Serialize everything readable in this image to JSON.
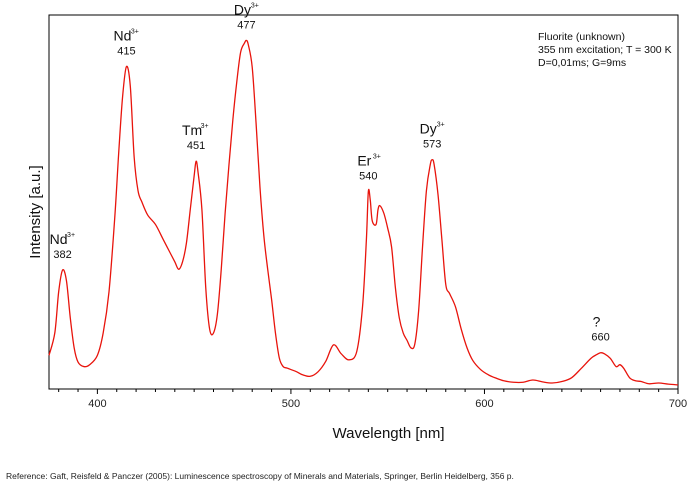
{
  "chart_data": {
    "type": "line",
    "xlabel": "Wavelength [nm]",
    "ylabel": "Intensity [a.u.]",
    "xlim": [
      375,
      700
    ],
    "ylim": [
      0,
      1
    ],
    "x_ticks": [
      400,
      500,
      600,
      700
    ],
    "y_ticks_labeled": false,
    "grid": false,
    "legend": "none",
    "line_color": "#e8140c",
    "info_lines": [
      "Fluorite (unknown)",
      "355 nm excitation; T = 300 K",
      "D=0,01ms; G=9ms"
    ],
    "peak_labels": [
      {
        "ion": "Nd",
        "charge": "3+",
        "value": "382",
        "x": 382,
        "y": 0.318
      },
      {
        "ion": "Nd",
        "charge": "3+",
        "value": "415",
        "x": 415,
        "y": 0.862
      },
      {
        "ion": "Tm",
        "charge": "3+",
        "value": "451",
        "x": 451,
        "y": 0.609
      },
      {
        "ion": "Dy",
        "charge": "3+",
        "value": "477",
        "x": 477,
        "y": 0.932
      },
      {
        "ion": "Er",
        "charge": "3+",
        "value": "540",
        "x": 540,
        "y": 0.528
      },
      {
        "ion": "Dy",
        "charge": "3+",
        "value": "573",
        "x": 573,
        "y": 0.613
      },
      {
        "ion": "?",
        "charge": "",
        "value": "660",
        "x": 660,
        "y": 0.097
      }
    ],
    "series": [
      {
        "x": [
          375,
          378,
          380,
          382,
          384,
          386,
          388,
          390,
          393,
          396,
          400,
          403,
          406,
          409,
          411,
          413,
          415,
          417,
          419,
          421,
          423,
          426,
          430,
          434,
          437,
          440,
          442,
          444,
          446,
          448,
          450,
          451,
          452,
          454,
          456,
          458,
          460,
          462,
          464,
          466,
          468,
          470,
          472,
          474,
          476,
          477,
          478,
          480,
          482,
          484,
          486,
          488,
          490,
          492,
          494,
          496,
          498,
          500,
          503,
          506,
          510,
          514,
          518,
          522,
          526,
          530,
          534,
          537,
          539,
          540,
          541,
          542,
          544,
          545,
          546,
          548,
          550,
          552,
          554,
          556,
          558,
          560,
          562,
          564,
          566,
          568,
          570,
          572,
          573,
          574,
          576,
          578,
          580,
          582,
          585,
          588,
          591,
          594,
          598,
          602,
          606,
          610,
          615,
          620,
          625,
          630,
          635,
          640,
          645,
          650,
          655,
          658,
          660,
          662,
          665,
          668,
          670,
          672,
          675,
          678,
          681,
          685,
          690,
          695,
          700
        ],
        "y": [
          0.09,
          0.15,
          0.26,
          0.318,
          0.29,
          0.19,
          0.11,
          0.072,
          0.06,
          0.065,
          0.09,
          0.15,
          0.26,
          0.46,
          0.63,
          0.78,
          0.862,
          0.81,
          0.62,
          0.53,
          0.5,
          0.465,
          0.44,
          0.4,
          0.37,
          0.34,
          0.32,
          0.34,
          0.39,
          0.48,
          0.57,
          0.609,
          0.58,
          0.48,
          0.27,
          0.16,
          0.15,
          0.2,
          0.32,
          0.47,
          0.6,
          0.72,
          0.82,
          0.9,
          0.925,
          0.932,
          0.92,
          0.86,
          0.71,
          0.54,
          0.41,
          0.32,
          0.24,
          0.15,
          0.083,
          0.06,
          0.056,
          0.052,
          0.046,
          0.038,
          0.034,
          0.046,
          0.074,
          0.118,
          0.094,
          0.078,
          0.1,
          0.22,
          0.4,
          0.528,
          0.505,
          0.45,
          0.44,
          0.48,
          0.49,
          0.47,
          0.43,
          0.38,
          0.27,
          0.19,
          0.15,
          0.13,
          0.11,
          0.12,
          0.21,
          0.38,
          0.53,
          0.6,
          0.613,
          0.6,
          0.52,
          0.4,
          0.28,
          0.255,
          0.22,
          0.16,
          0.11,
          0.076,
          0.052,
          0.038,
          0.029,
          0.022,
          0.018,
          0.018,
          0.024,
          0.019,
          0.016,
          0.02,
          0.03,
          0.055,
          0.082,
          0.092,
          0.097,
          0.094,
          0.082,
          0.06,
          0.065,
          0.055,
          0.03,
          0.022,
          0.02,
          0.014,
          0.016,
          0.013,
          0.011
        ]
      }
    ]
  },
  "footer": {
    "reference": "Reference: Gaft, Reisfeld & Panczer (2005): Luminescence spectroscopy of Minerals and Materials, Springer, Berlin Heidelberg, 356 p."
  }
}
